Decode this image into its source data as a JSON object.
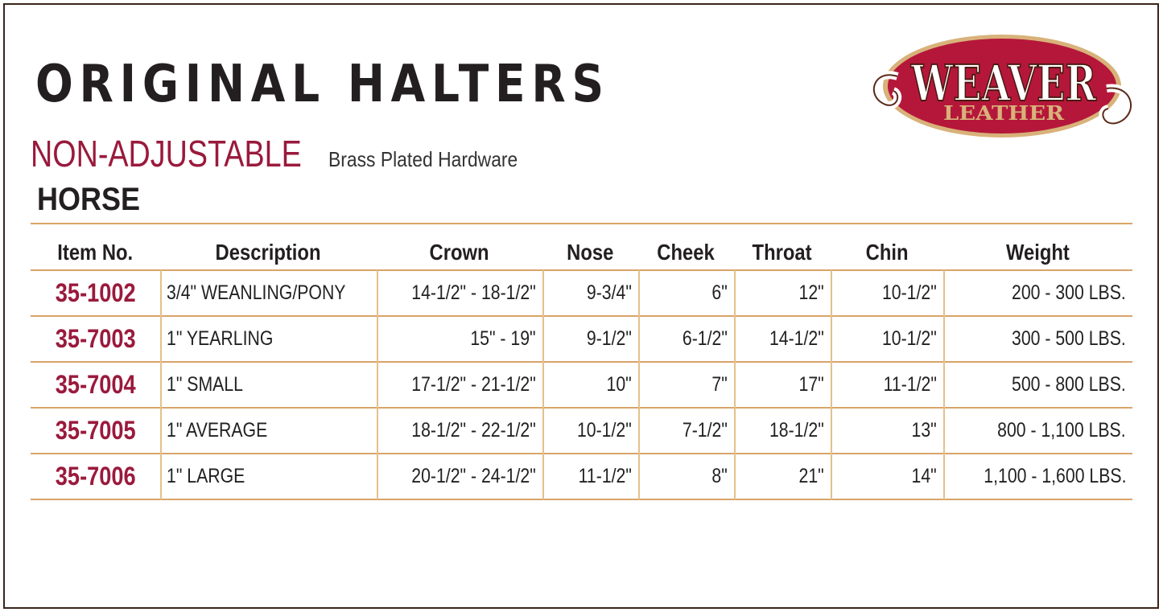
{
  "title": "ORIGINAL HALTERS",
  "subtitle": "NON-ADJUSTABLE",
  "hardware": "Brass Plated Hardware",
  "section": "HORSE",
  "logo": {
    "top": "WEAVER",
    "bottom": "LEATHER",
    "red": "#b5173a",
    "tan": "#d8b27a"
  },
  "colors": {
    "accent": "#9a1a3c",
    "rule": "#d8a468",
    "frame": "#3a2419"
  },
  "table": {
    "headers": [
      "Item No.",
      "Description",
      "Crown",
      "Nose",
      "Cheek",
      "Throat",
      "Chin",
      "Weight"
    ],
    "rows": [
      [
        "35-1002",
        "3/4\" WEANLING/PONY",
        "14-1/2\" - 18-1/2\"",
        "9-3/4\"",
        "6\"",
        "12\"",
        "10-1/2\"",
        "200 - 300 LBS."
      ],
      [
        "35-7003",
        "1\" YEARLING",
        "15\" - 19\"",
        "9-1/2\"",
        "6-1/2\"",
        "14-1/2\"",
        "10-1/2\"",
        "300 - 500 LBS."
      ],
      [
        "35-7004",
        "1\" SMALL",
        "17-1/2\" - 21-1/2\"",
        "10\"",
        "7\"",
        "17\"",
        "11-1/2\"",
        "500 - 800 LBS."
      ],
      [
        "35-7005",
        "1\" AVERAGE",
        "18-1/2\" - 22-1/2\"",
        "10-1/2\"",
        "7-1/2\"",
        "18-1/2\"",
        "13\"",
        "800 - 1,100 LBS."
      ],
      [
        "35-7006",
        "1\" LARGE",
        "20-1/2\" - 24-1/2\"",
        "11-1/2\"",
        "8\"",
        "21\"",
        "14\"",
        "1,100 - 1,600 LBS."
      ]
    ]
  }
}
